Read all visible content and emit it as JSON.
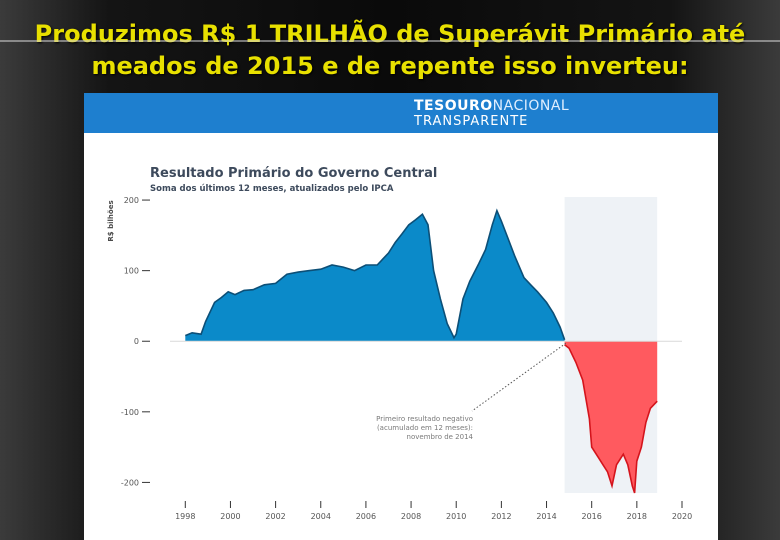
{
  "slide": {
    "title_line1": "Produzimos R$ 1 TRILHÃO de Superávit Primário até",
    "title_line2": "meados de 2015 e de repente isso inverteu:",
    "title_color": "#e8e000"
  },
  "banner": {
    "logo_part_a": "TESOURO",
    "logo_part_b": "NACIONAL",
    "logo_line2": "TRANSPARENTE",
    "color": "#1e7fcf"
  },
  "chart_data": {
    "type": "area",
    "title": "Resultado Primário do Governo Central",
    "subtitle": "Soma dos últimos 12 meses, atualizados pelo IPCA",
    "xlabel": "",
    "ylabel": "R$ bilhões",
    "xlim": [
      1997.5,
      2020
    ],
    "ylim": [
      -215,
      210
    ],
    "x_ticks": [
      1998,
      2000,
      2002,
      2004,
      2006,
      2008,
      2010,
      2012,
      2014,
      2016,
      2018,
      2020
    ],
    "x_tick_labels": [
      "1998",
      "2000",
      "2002",
      "2004",
      "2006",
      "2008",
      "2010",
      "2012",
      "2014",
      "2016",
      "2018",
      "2020"
    ],
    "y_ticks": [
      200,
      100,
      0,
      -100,
      -200
    ],
    "y_tick_labels": [
      "200",
      "100",
      "0",
      "-100",
      "-200"
    ],
    "grid": false,
    "colors": {
      "positive": "#0b8ac9",
      "negative": "#ff5a5f",
      "highlight": "#eef2f6"
    },
    "highlight_range": [
      2014.8,
      2018.9
    ],
    "series": [
      {
        "x": [
          1998.0,
          1998.3,
          1998.7,
          1998.9,
          1999.3,
          1999.6,
          1999.9,
          2000.2,
          2000.6,
          2001.0,
          2001.5,
          2002.0,
          2002.5,
          2003.0,
          2003.5,
          2004.0,
          2004.5,
          2005.0,
          2005.5,
          2006.0,
          2006.5,
          2007.0,
          2007.3,
          2007.6,
          2007.9,
          2008.2,
          2008.5,
          2008.75,
          2009.0,
          2009.3,
          2009.6,
          2009.9,
          2010.0,
          2010.3,
          2010.6,
          2011.0,
          2011.3,
          2011.6,
          2011.8,
          2012.0,
          2012.3,
          2012.6,
          2013.0,
          2013.3,
          2013.6,
          2014.0,
          2014.3,
          2014.6,
          2014.8
        ],
        "values": [
          8,
          12,
          10,
          28,
          55,
          62,
          70,
          66,
          72,
          73,
          80,
          82,
          95,
          98,
          100,
          102,
          108,
          105,
          100,
          108,
          108,
          125,
          140,
          152,
          165,
          172,
          180,
          165,
          100,
          60,
          25,
          5,
          10,
          60,
          85,
          110,
          130,
          165,
          185,
          170,
          145,
          120,
          90,
          80,
          70,
          55,
          40,
          20,
          2
        ]
      },
      {
        "x": [
          2014.8,
          2015.0,
          2015.3,
          2015.6,
          2015.9,
          2016.0,
          2016.3,
          2016.5,
          2016.7,
          2016.9,
          2017.1,
          2017.4,
          2017.6,
          2017.8,
          2017.9,
          2018.0,
          2018.2,
          2018.4,
          2018.6,
          2018.9
        ],
        "values": [
          -5,
          -10,
          -30,
          -55,
          -110,
          -150,
          -165,
          -175,
          -185,
          -205,
          -175,
          -160,
          -175,
          -205,
          -215,
          -170,
          -150,
          -115,
          -95,
          -85
        ]
      }
    ],
    "annotation": {
      "lines": [
        "Primeiro resultado negativo",
        "(acumulado em 12 meses):",
        "novembro de 2014"
      ],
      "points_to": [
        2014.9,
        0
      ]
    }
  }
}
